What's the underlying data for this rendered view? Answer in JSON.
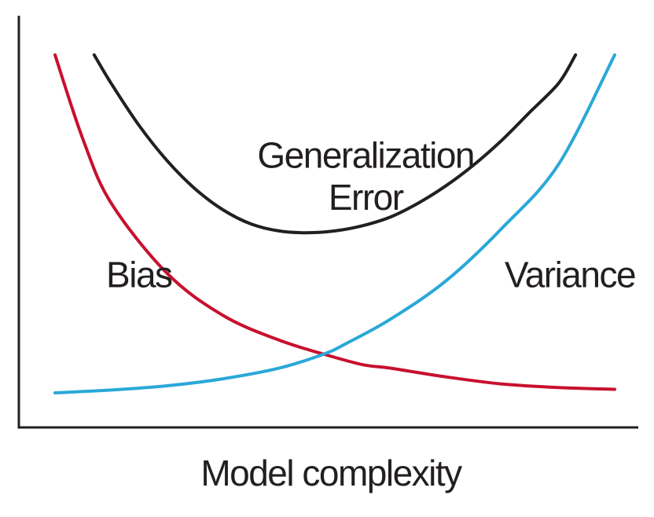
{
  "chart_data": {
    "type": "line",
    "title": "",
    "xlabel": "Model complexity",
    "ylabel": "",
    "grid": false,
    "legend": "none",
    "xlim": [
      0,
      100
    ],
    "ylim": [
      0,
      100
    ],
    "series": [
      {
        "name": "Bias",
        "color": "#c8102e",
        "x": [
          0,
          5,
          10,
          20,
          30,
          40,
          48,
          55,
          60,
          70,
          80,
          90,
          100
        ],
        "y": [
          96,
          72,
          54,
          34,
          22,
          15,
          11,
          8,
          7,
          4.5,
          2.5,
          1.5,
          1
        ]
      },
      {
        "name": "Variance",
        "color": "#2aa8d8",
        "x": [
          0,
          10,
          20,
          30,
          40,
          48,
          52,
          60,
          70,
          80,
          90,
          100
        ],
        "y": [
          0,
          0.8,
          2,
          4,
          7,
          11,
          14,
          21,
          32,
          47,
          65,
          96
        ]
      },
      {
        "name": "Generalization Error",
        "color": "#231f20",
        "x": [
          7,
          10,
          15,
          20,
          25,
          30,
          35,
          40,
          45,
          50,
          55,
          60,
          65,
          70,
          75,
          80,
          85,
          90,
          93
        ],
        "y": [
          96,
          88,
          76,
          66,
          58,
          52,
          48,
          46,
          45.5,
          46,
          47.5,
          50,
          54,
          59,
          65,
          72,
          80,
          88,
          96
        ]
      }
    ],
    "annotations": [
      {
        "id": "bias",
        "text": "Bias",
        "x": 15,
        "y": 30
      },
      {
        "id": "generalization-error-1",
        "text": "Generalization",
        "x": 55.5,
        "y": 64
      },
      {
        "id": "generalization-error-2",
        "text": "Error",
        "x": 55.5,
        "y": 52
      },
      {
        "id": "variance",
        "text": "Variance",
        "x": 92,
        "y": 30
      }
    ]
  }
}
